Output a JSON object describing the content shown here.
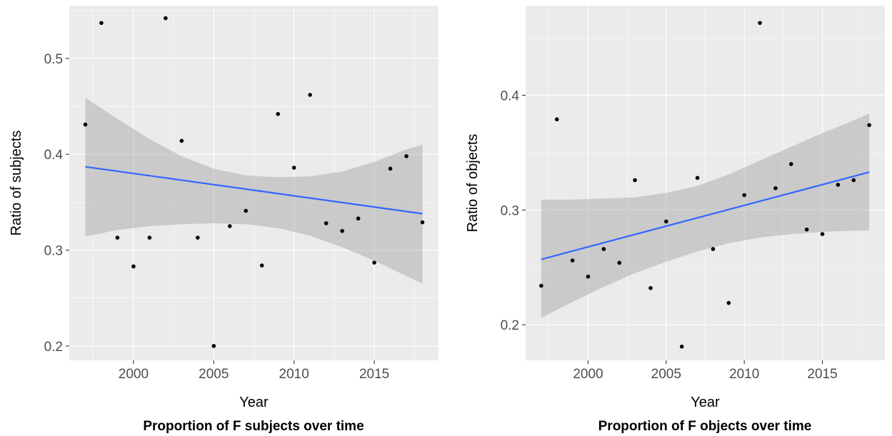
{
  "colors": {
    "panel_background": "#ebebeb",
    "grid": "#ffffff",
    "points": "#000000",
    "fit_line": "#3366ff",
    "confidence_band": "#999999"
  },
  "chart_data": [
    {
      "type": "scatter",
      "title": "Proportion of F subjects over time",
      "xlabel": "Year",
      "ylabel": "Ratio of subjects",
      "xlim": [
        1996.0,
        2019.0
      ],
      "ylim": [
        0.185,
        0.555
      ],
      "x_ticks": [
        2000,
        2005,
        2010,
        2015
      ],
      "x_tick_labels": [
        "2000",
        "2005",
        "2010",
        "2015"
      ],
      "y_ticks": [
        0.2,
        0.3,
        0.4,
        0.5
      ],
      "y_tick_labels": [
        "0.2",
        "0.3",
        "0.4",
        "0.5"
      ],
      "grid": true,
      "points": [
        {
          "x": 1997,
          "y": 0.431
        },
        {
          "x": 1998,
          "y": 0.537
        },
        {
          "x": 1999,
          "y": 0.313
        },
        {
          "x": 2000,
          "y": 0.283
        },
        {
          "x": 2001,
          "y": 0.313
        },
        {
          "x": 2002,
          "y": 0.542
        },
        {
          "x": 2003,
          "y": 0.414
        },
        {
          "x": 2004,
          "y": 0.313
        },
        {
          "x": 2005,
          "y": 0.2
        },
        {
          "x": 2006,
          "y": 0.325
        },
        {
          "x": 2007,
          "y": 0.341
        },
        {
          "x": 2008,
          "y": 0.284
        },
        {
          "x": 2009,
          "y": 0.442
        },
        {
          "x": 2010,
          "y": 0.386
        },
        {
          "x": 2011,
          "y": 0.462
        },
        {
          "x": 2012,
          "y": 0.328
        },
        {
          "x": 2013,
          "y": 0.32
        },
        {
          "x": 2014,
          "y": 0.333
        },
        {
          "x": 2015,
          "y": 0.287
        },
        {
          "x": 2016,
          "y": 0.385
        },
        {
          "x": 2017,
          "y": 0.398
        },
        {
          "x": 2018,
          "y": 0.329
        }
      ],
      "fit": {
        "method": "linear",
        "x": [
          1997,
          2018
        ],
        "y": [
          0.387,
          0.338
        ],
        "band": {
          "x": [
            1997,
            1999,
            2001,
            2003,
            2005,
            2007,
            2009,
            2011,
            2013,
            2015,
            2017,
            2018
          ],
          "upper": [
            0.459,
            0.437,
            0.416,
            0.398,
            0.385,
            0.378,
            0.376,
            0.377,
            0.382,
            0.392,
            0.405,
            0.41
          ],
          "lower": [
            0.314,
            0.321,
            0.325,
            0.327,
            0.328,
            0.327,
            0.323,
            0.315,
            0.303,
            0.289,
            0.273,
            0.265
          ]
        }
      }
    },
    {
      "type": "scatter",
      "title": "Proportion of F objects over time",
      "xlabel": "Year",
      "ylabel": "Ratio of objects",
      "xlim": [
        1996.0,
        2019.0
      ],
      "ylim": [
        0.169,
        0.478
      ],
      "x_ticks": [
        2000,
        2005,
        2010,
        2015
      ],
      "x_tick_labels": [
        "2000",
        "2005",
        "2010",
        "2015"
      ],
      "y_ticks": [
        0.2,
        0.3,
        0.4
      ],
      "y_tick_labels": [
        "0.2",
        "0.3",
        "0.4"
      ],
      "grid": true,
      "points": [
        {
          "x": 1997,
          "y": 0.234
        },
        {
          "x": 1998,
          "y": 0.379
        },
        {
          "x": 1999,
          "y": 0.256
        },
        {
          "x": 2000,
          "y": 0.242
        },
        {
          "x": 2001,
          "y": 0.266
        },
        {
          "x": 2002,
          "y": 0.254
        },
        {
          "x": 2003,
          "y": 0.326
        },
        {
          "x": 2004,
          "y": 0.232
        },
        {
          "x": 2005,
          "y": 0.29
        },
        {
          "x": 2006,
          "y": 0.181
        },
        {
          "x": 2007,
          "y": 0.328
        },
        {
          "x": 2008,
          "y": 0.266
        },
        {
          "x": 2009,
          "y": 0.219
        },
        {
          "x": 2010,
          "y": 0.313
        },
        {
          "x": 2011,
          "y": 0.463
        },
        {
          "x": 2012,
          "y": 0.319
        },
        {
          "x": 2013,
          "y": 0.34
        },
        {
          "x": 2014,
          "y": 0.283
        },
        {
          "x": 2015,
          "y": 0.279
        },
        {
          "x": 2016,
          "y": 0.322
        },
        {
          "x": 2017,
          "y": 0.326
        },
        {
          "x": 2018,
          "y": 0.374
        }
      ],
      "fit": {
        "method": "linear",
        "x": [
          1997,
          2018
        ],
        "y": [
          0.257,
          0.333
        ],
        "band": {
          "x": [
            1997,
            1999,
            2001,
            2003,
            2005,
            2007,
            2009,
            2011,
            2013,
            2015,
            2017,
            2018
          ],
          "upper": [
            0.309,
            0.309,
            0.31,
            0.311,
            0.315,
            0.321,
            0.331,
            0.343,
            0.355,
            0.367,
            0.378,
            0.384
          ],
          "lower": [
            0.206,
            0.22,
            0.233,
            0.245,
            0.255,
            0.264,
            0.271,
            0.276,
            0.279,
            0.281,
            0.282,
            0.282
          ]
        }
      }
    }
  ]
}
